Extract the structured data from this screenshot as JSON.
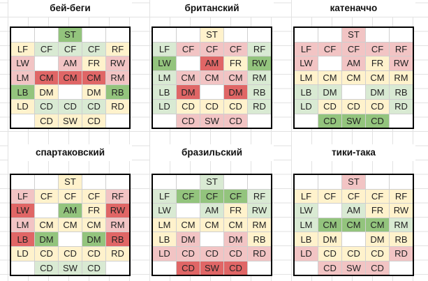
{
  "palette": {
    "white": "#FFFFFF",
    "cream": "#FFF2CC",
    "lgreen": "#D9EAD3",
    "green": "#93C47D",
    "pink": "#F2C4C4",
    "red": "#E06666"
  },
  "sheet": {
    "gridline_color": "#E2E2E2",
    "table_border_color": "#000000",
    "cell_border_color": "#CFCFCF"
  },
  "grids": [
    {
      "title": "бей-беги",
      "rows": [
        [
          [
            "",
            "white"
          ],
          [
            "",
            "white"
          ],
          [
            "ST",
            "green"
          ],
          [
            "",
            "white"
          ],
          [
            "",
            "white"
          ]
        ],
        [
          [
            "LF",
            "cream"
          ],
          [
            "CF",
            "lgreen"
          ],
          [
            "CF",
            "lgreen"
          ],
          [
            "CF",
            "lgreen"
          ],
          [
            "RF",
            "cream"
          ]
        ],
        [
          [
            "LW",
            "pink"
          ],
          [
            "",
            "white"
          ],
          [
            "AM",
            "pink"
          ],
          [
            "FR",
            "cream"
          ],
          [
            "RW",
            "pink"
          ]
        ],
        [
          [
            "LM",
            "pink"
          ],
          [
            "CM",
            "red"
          ],
          [
            "CM",
            "red"
          ],
          [
            "CM",
            "red"
          ],
          [
            "RM",
            "pink"
          ]
        ],
        [
          [
            "LB",
            "green"
          ],
          [
            "DM",
            "cream"
          ],
          [
            "",
            "white"
          ],
          [
            "DM",
            "cream"
          ],
          [
            "RB",
            "green"
          ]
        ],
        [
          [
            "LD",
            "cream"
          ],
          [
            "CD",
            "lgreen"
          ],
          [
            "CD",
            "lgreen"
          ],
          [
            "CD",
            "lgreen"
          ],
          [
            "RD",
            "cream"
          ]
        ],
        [
          [
            "",
            "white"
          ],
          [
            "CD",
            "cream"
          ],
          [
            "SW",
            "cream"
          ],
          [
            "CD",
            "cream"
          ],
          [
            "",
            "white"
          ]
        ]
      ]
    },
    {
      "title": "британский",
      "rows": [
        [
          [
            "",
            "white"
          ],
          [
            "",
            "white"
          ],
          [
            "ST",
            "cream"
          ],
          [
            "",
            "white"
          ],
          [
            "",
            "white"
          ]
        ],
        [
          [
            "LF",
            "lgreen"
          ],
          [
            "CF",
            "pink"
          ],
          [
            "CF",
            "pink"
          ],
          [
            "CF",
            "pink"
          ],
          [
            "RF",
            "lgreen"
          ]
        ],
        [
          [
            "LW",
            "green"
          ],
          [
            "",
            "white"
          ],
          [
            "AM",
            "red"
          ],
          [
            "FR",
            "cream"
          ],
          [
            "RW",
            "green"
          ]
        ],
        [
          [
            "LM",
            "lgreen"
          ],
          [
            "CM",
            "pink"
          ],
          [
            "CM",
            "pink"
          ],
          [
            "CM",
            "pink"
          ],
          [
            "RM",
            "lgreen"
          ]
        ],
        [
          [
            "LB",
            "lgreen"
          ],
          [
            "DM",
            "red"
          ],
          [
            "",
            "white"
          ],
          [
            "DM",
            "red"
          ],
          [
            "RB",
            "lgreen"
          ]
        ],
        [
          [
            "LD",
            "lgreen"
          ],
          [
            "CD",
            "cream"
          ],
          [
            "CD",
            "cream"
          ],
          [
            "CD",
            "cream"
          ],
          [
            "RD",
            "lgreen"
          ]
        ],
        [
          [
            "",
            "white"
          ],
          [
            "CD",
            "pink"
          ],
          [
            "SW",
            "pink"
          ],
          [
            "CD",
            "pink"
          ],
          [
            "",
            "white"
          ]
        ]
      ]
    },
    {
      "title": "катеначчо",
      "rows": [
        [
          [
            "",
            "white"
          ],
          [
            "",
            "white"
          ],
          [
            "ST",
            "pink"
          ],
          [
            "",
            "white"
          ],
          [
            "",
            "white"
          ]
        ],
        [
          [
            "LF",
            "pink"
          ],
          [
            "CF",
            "pink"
          ],
          [
            "CF",
            "pink"
          ],
          [
            "CF",
            "pink"
          ],
          [
            "RF",
            "pink"
          ]
        ],
        [
          [
            "LW",
            "pink"
          ],
          [
            "",
            "white"
          ],
          [
            "AM",
            "pink"
          ],
          [
            "FR",
            "cream"
          ],
          [
            "RW",
            "pink"
          ]
        ],
        [
          [
            "LM",
            "cream"
          ],
          [
            "CM",
            "cream"
          ],
          [
            "CM",
            "cream"
          ],
          [
            "CM",
            "cream"
          ],
          [
            "RM",
            "cream"
          ]
        ],
        [
          [
            "LB",
            "lgreen"
          ],
          [
            "DM",
            "lgreen"
          ],
          [
            "",
            "white"
          ],
          [
            "DM",
            "lgreen"
          ],
          [
            "RB",
            "lgreen"
          ]
        ],
        [
          [
            "LD",
            "lgreen"
          ],
          [
            "CD",
            "cream"
          ],
          [
            "CD",
            "cream"
          ],
          [
            "CD",
            "cream"
          ],
          [
            "RD",
            "lgreen"
          ]
        ],
        [
          [
            "",
            "white"
          ],
          [
            "CD",
            "green"
          ],
          [
            "SW",
            "green"
          ],
          [
            "CD",
            "green"
          ],
          [
            "",
            "white"
          ]
        ]
      ]
    },
    {
      "title": "спартаковский",
      "rows": [
        [
          [
            "",
            "white"
          ],
          [
            "",
            "white"
          ],
          [
            "ST",
            "cream"
          ],
          [
            "",
            "white"
          ],
          [
            "",
            "white"
          ]
        ],
        [
          [
            "LF",
            "pink"
          ],
          [
            "CF",
            "cream"
          ],
          [
            "CF",
            "cream"
          ],
          [
            "CF",
            "cream"
          ],
          [
            "RF",
            "pink"
          ]
        ],
        [
          [
            "LW",
            "red"
          ],
          [
            "",
            "white"
          ],
          [
            "AM",
            "green"
          ],
          [
            "FR",
            "cream"
          ],
          [
            "RW",
            "red"
          ]
        ],
        [
          [
            "LM",
            "pink"
          ],
          [
            "CM",
            "cream"
          ],
          [
            "CM",
            "cream"
          ],
          [
            "CM",
            "cream"
          ],
          [
            "RM",
            "pink"
          ]
        ],
        [
          [
            "LB",
            "red"
          ],
          [
            "DM",
            "green"
          ],
          [
            "",
            "white"
          ],
          [
            "DM",
            "green"
          ],
          [
            "RB",
            "red"
          ]
        ],
        [
          [
            "LD",
            "cream"
          ],
          [
            "CD",
            "cream"
          ],
          [
            "CD",
            "cream"
          ],
          [
            "CD",
            "cream"
          ],
          [
            "RD",
            "cream"
          ]
        ],
        [
          [
            "",
            "white"
          ],
          [
            "CD",
            "lgreen"
          ],
          [
            "SW",
            "lgreen"
          ],
          [
            "CD",
            "lgreen"
          ],
          [
            "",
            "white"
          ]
        ]
      ]
    },
    {
      "title": "бразильский",
      "rows": [
        [
          [
            "",
            "white"
          ],
          [
            "",
            "white"
          ],
          [
            "ST",
            "lgreen"
          ],
          [
            "",
            "white"
          ],
          [
            "",
            "white"
          ]
        ],
        [
          [
            "LF",
            "lgreen"
          ],
          [
            "CF",
            "green"
          ],
          [
            "CF",
            "green"
          ],
          [
            "CF",
            "green"
          ],
          [
            "RF",
            "lgreen"
          ]
        ],
        [
          [
            "LW",
            "lgreen"
          ],
          [
            "",
            "white"
          ],
          [
            "AM",
            "lgreen"
          ],
          [
            "FR",
            "cream"
          ],
          [
            "RW",
            "lgreen"
          ]
        ],
        [
          [
            "LM",
            "cream"
          ],
          [
            "CM",
            "cream"
          ],
          [
            "CM",
            "cream"
          ],
          [
            "CM",
            "cream"
          ],
          [
            "RM",
            "cream"
          ]
        ],
        [
          [
            "LB",
            "cream"
          ],
          [
            "DM",
            "pink"
          ],
          [
            "",
            "white"
          ],
          [
            "DM",
            "pink"
          ],
          [
            "RB",
            "cream"
          ]
        ],
        [
          [
            "LD",
            "pink"
          ],
          [
            "CD",
            "pink"
          ],
          [
            "CD",
            "pink"
          ],
          [
            "CD",
            "pink"
          ],
          [
            "RD",
            "pink"
          ]
        ],
        [
          [
            "",
            "white"
          ],
          [
            "CD",
            "red"
          ],
          [
            "SW",
            "red"
          ],
          [
            "CD",
            "red"
          ],
          [
            "",
            "white"
          ]
        ]
      ]
    },
    {
      "title": "тики-така",
      "rows": [
        [
          [
            "",
            "white"
          ],
          [
            "",
            "white"
          ],
          [
            "ST",
            "pink"
          ],
          [
            "",
            "white"
          ],
          [
            "",
            "white"
          ]
        ],
        [
          [
            "LF",
            "cream"
          ],
          [
            "CF",
            "cream"
          ],
          [
            "CF",
            "cream"
          ],
          [
            "CF",
            "cream"
          ],
          [
            "RF",
            "cream"
          ]
        ],
        [
          [
            "LW",
            "lgreen"
          ],
          [
            "",
            "white"
          ],
          [
            "AM",
            "lgreen"
          ],
          [
            "FR",
            "cream"
          ],
          [
            "RW",
            "cream"
          ]
        ],
        [
          [
            "LM",
            "lgreen"
          ],
          [
            "CM",
            "green"
          ],
          [
            "CM",
            "green"
          ],
          [
            "CM",
            "green"
          ],
          [
            "RM",
            "lgreen"
          ]
        ],
        [
          [
            "LB",
            "cream"
          ],
          [
            "DM",
            "cream"
          ],
          [
            "",
            "white"
          ],
          [
            "DM",
            "cream"
          ],
          [
            "RB",
            "cream"
          ]
        ],
        [
          [
            "LD",
            "pink"
          ],
          [
            "CD",
            "cream"
          ],
          [
            "CD",
            "cream"
          ],
          [
            "CD",
            "cream"
          ],
          [
            "RD",
            "pink"
          ]
        ],
        [
          [
            "",
            "white"
          ],
          [
            "CD",
            "pink"
          ],
          [
            "SW",
            "pink"
          ],
          [
            "CD",
            "pink"
          ],
          [
            "",
            "white"
          ]
        ]
      ]
    }
  ]
}
